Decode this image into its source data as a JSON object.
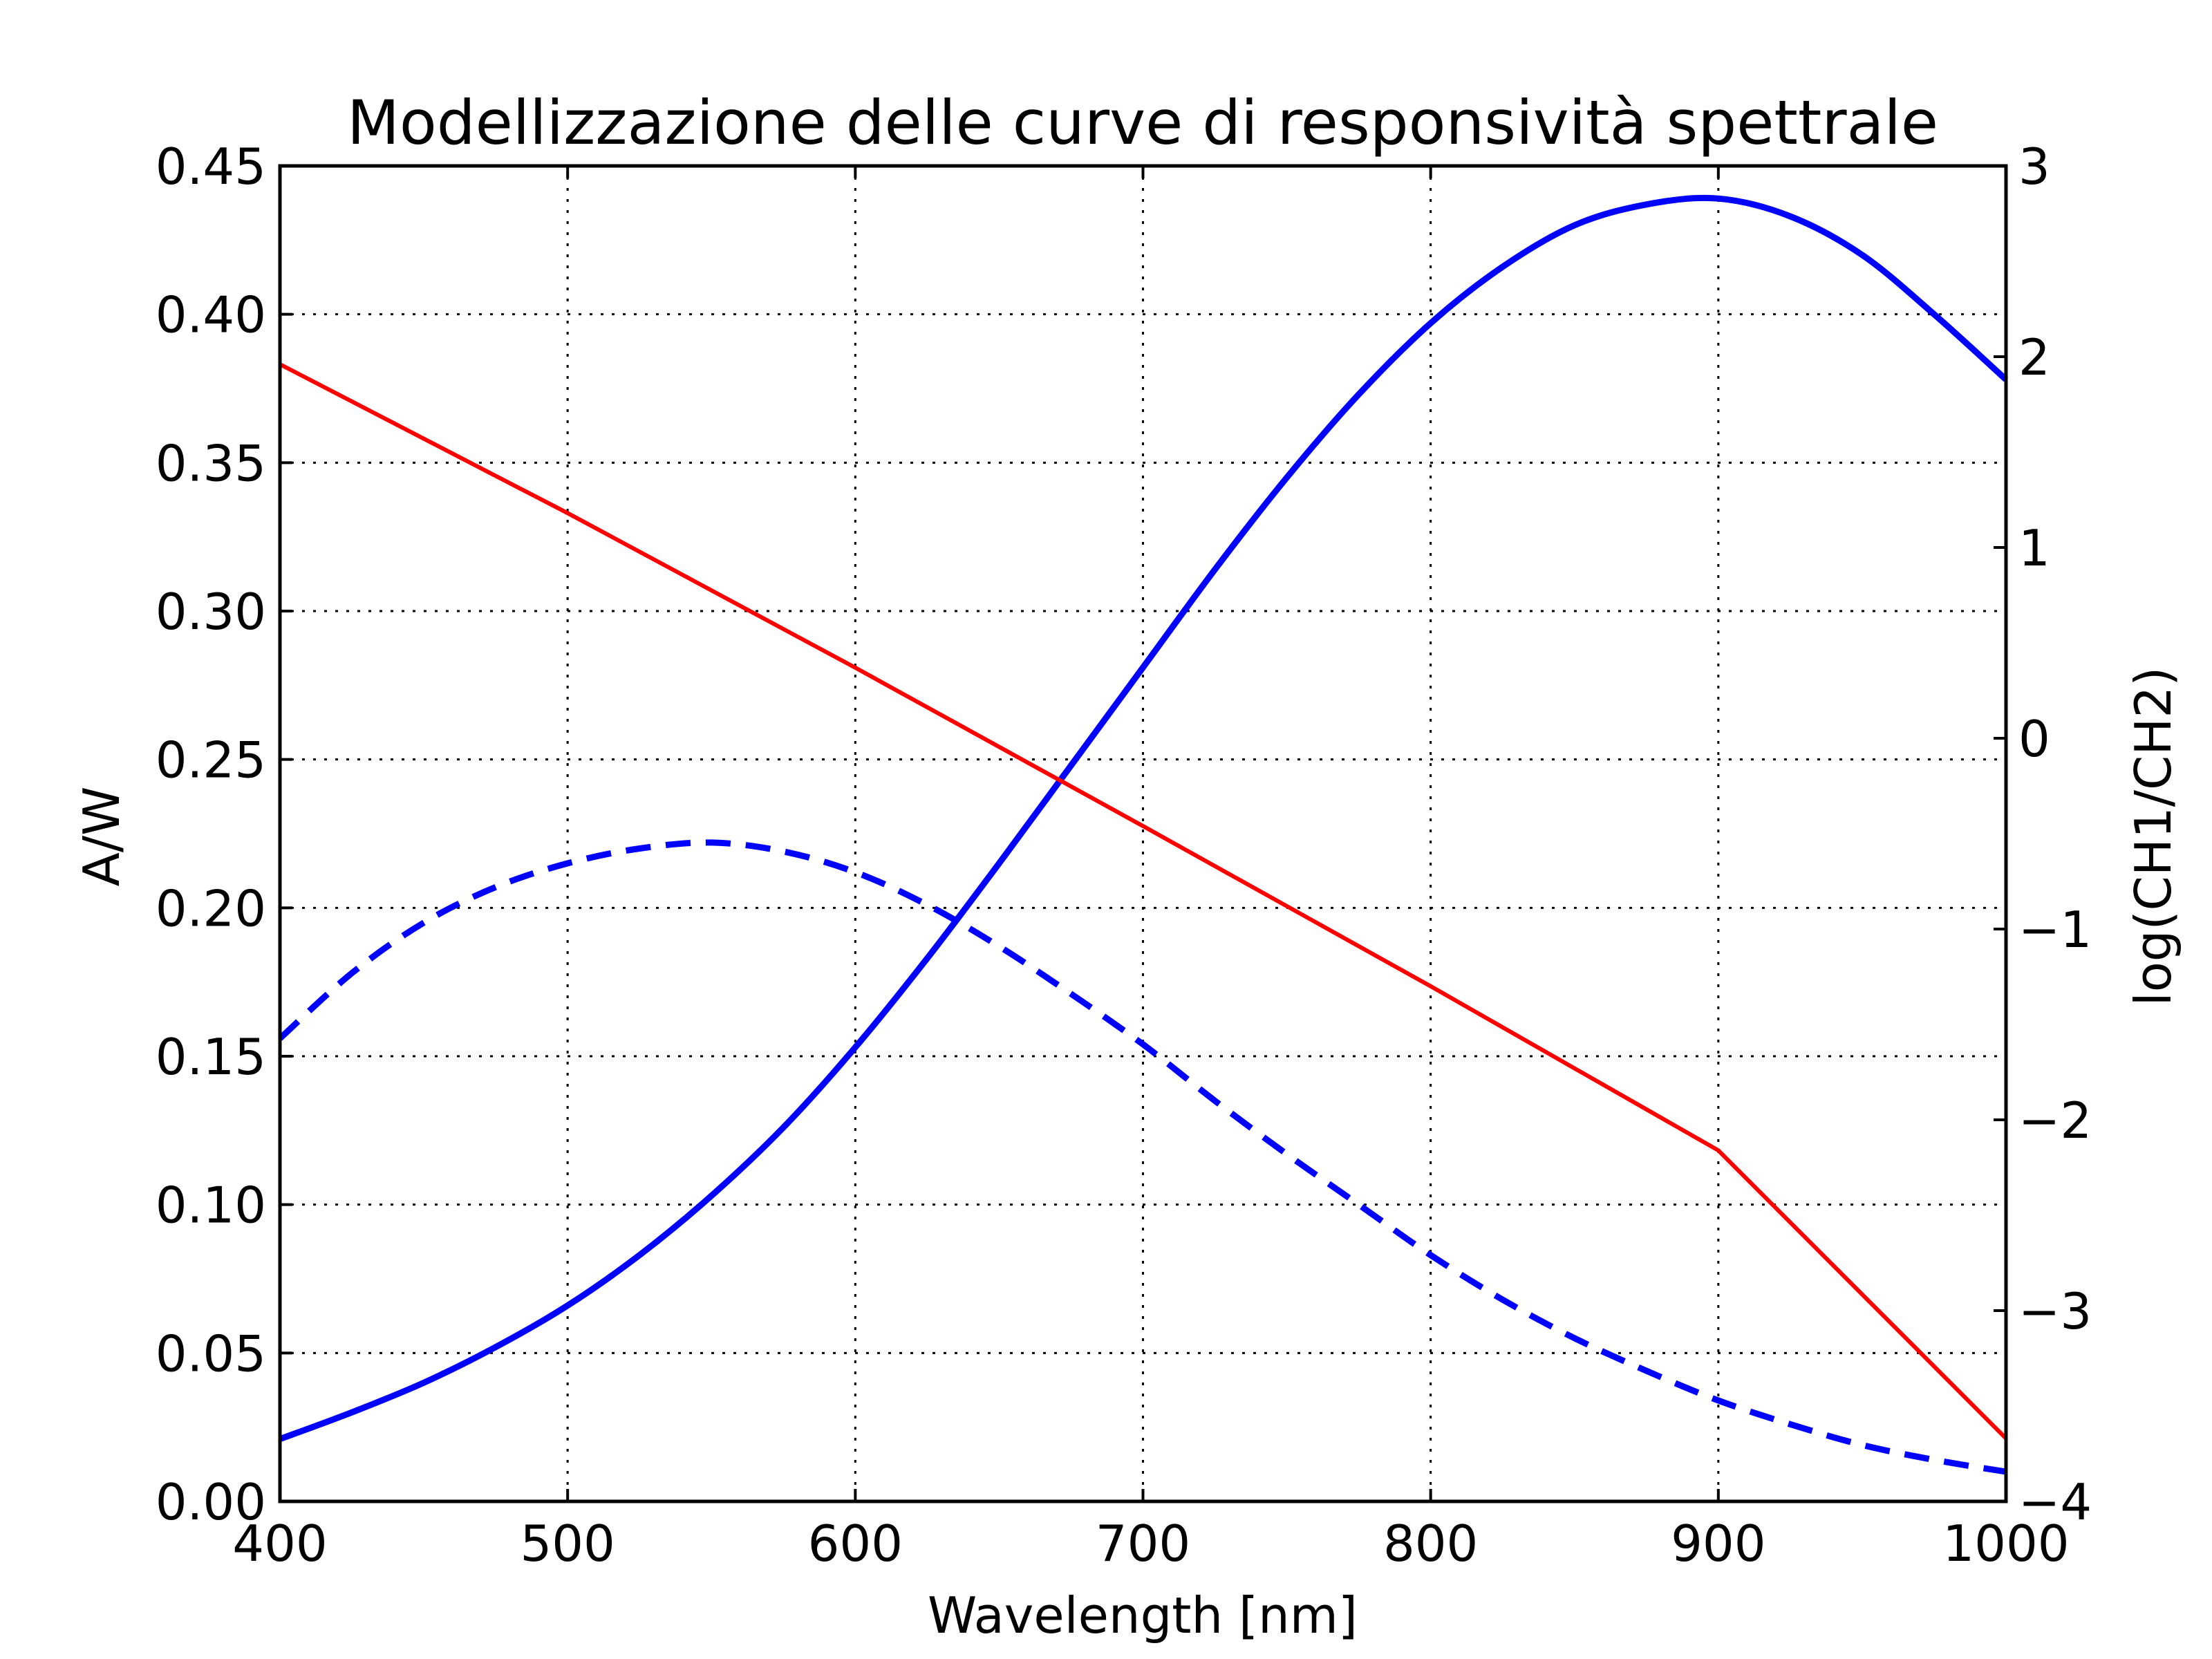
{
  "chart_data": {
    "type": "line",
    "title": "Modellizzazione delle curve di responsività spettrale",
    "xlabel": "Wavelength [nm]",
    "ylabel": "A/W",
    "y2label": "log(CH1/CH2)",
    "xlim": [
      400,
      1000
    ],
    "ylim": [
      0,
      0.45
    ],
    "y2lim": [
      -4,
      3
    ],
    "grid": true,
    "x_ticks": [
      "400",
      "500",
      "600",
      "700",
      "800",
      "900",
      "1000"
    ],
    "y_ticks": [
      "0.00",
      "0.05",
      "0.10",
      "0.15",
      "0.20",
      "0.25",
      "0.30",
      "0.35",
      "0.40",
      "0.45"
    ],
    "y2_ticks": [
      "−4",
      "−3",
      "−2",
      "−1",
      "0",
      "1",
      "2",
      "3"
    ],
    "series": [
      {
        "axis": "left",
        "color": "#0000ff",
        "style": "dashed",
        "x": [
          400,
          425,
          450,
          475,
          500,
          525,
          550,
          575,
          600,
          625,
          650,
          675,
          700,
          725,
          750,
          775,
          800,
          825,
          850,
          875,
          900,
          925,
          950,
          975,
          1000
        ],
        "y": [
          0.156,
          0.178,
          0.195,
          0.207,
          0.215,
          0.22,
          0.222,
          0.219,
          0.212,
          0.201,
          0.187,
          0.171,
          0.154,
          0.135,
          0.117,
          0.1,
          0.083,
          0.068,
          0.055,
          0.044,
          0.034,
          0.026,
          0.019,
          0.014,
          0.01
        ]
      },
      {
        "axis": "left",
        "color": "#0000ff",
        "style": "solid",
        "x": [
          400,
          425,
          450,
          475,
          500,
          525,
          550,
          575,
          600,
          625,
          650,
          675,
          700,
          725,
          750,
          775,
          800,
          825,
          850,
          875,
          900,
          925,
          950,
          975,
          1000
        ],
        "y": [
          0.021,
          0.03,
          0.04,
          0.052,
          0.066,
          0.083,
          0.103,
          0.126,
          0.153,
          0.183,
          0.215,
          0.248,
          0.281,
          0.314,
          0.345,
          0.373,
          0.397,
          0.416,
          0.43,
          0.437,
          0.439,
          0.433,
          0.42,
          0.4,
          0.378
        ]
      },
      {
        "axis": "right",
        "color": "#ff0000",
        "style": "solid",
        "x": [
          400,
          500,
          600,
          700,
          800,
          900,
          1000
        ],
        "y": [
          1.96,
          1.18,
          0.37,
          -0.46,
          -1.3,
          -2.16,
          -3.67
        ]
      }
    ]
  }
}
